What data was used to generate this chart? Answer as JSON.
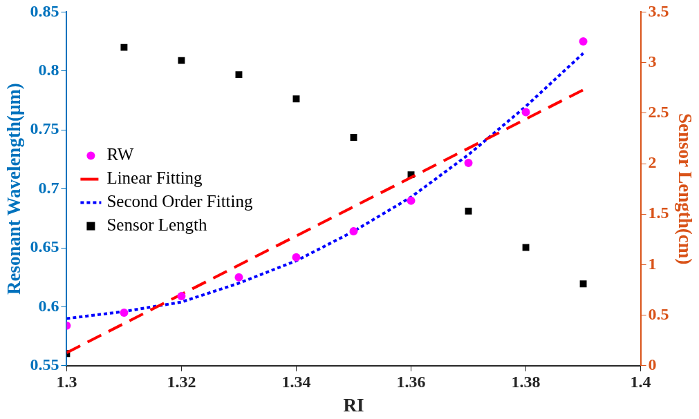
{
  "chart_data": {
    "type": "scatter",
    "xlabel": "RI",
    "ylabel": "Resonant Wavelength(μm)",
    "y2label": "Sensor Length(cm)",
    "x": [
      1.3,
      1.31,
      1.32,
      1.33,
      1.34,
      1.35,
      1.36,
      1.37,
      1.38,
      1.39
    ],
    "xlim": [
      1.3,
      1.4
    ],
    "xticks": [
      1.3,
      1.32,
      1.34,
      1.36,
      1.38,
      1.4
    ],
    "ylim": [
      0.55,
      0.85
    ],
    "yticks": [
      0.55,
      0.6,
      0.65,
      0.7,
      0.75,
      0.8,
      0.85
    ],
    "y2lim": [
      0,
      3.5
    ],
    "y2ticks": [
      0,
      0.5,
      1,
      1.5,
      2,
      2.5,
      3,
      3.5
    ],
    "grid": false,
    "legend": "left",
    "series": [
      {
        "name": "RW",
        "marker": "circle",
        "color": "#ff00ff",
        "values": [
          0.584,
          0.595,
          0.609,
          0.625,
          0.642,
          0.664,
          0.69,
          0.722,
          0.765,
          0.825
        ]
      },
      {
        "name": "Linear Fitting",
        "type": "line",
        "marker": "none",
        "line_style": "dashed",
        "color": "#ff0000",
        "x": [
          1.3,
          1.39
        ],
        "values": [
          0.561,
          0.784
        ]
      },
      {
        "name": "Second Order Fitting",
        "type": "line",
        "marker": "none",
        "line_style": "dotted",
        "color": "#0000ff",
        "x": [
          1.3,
          1.31,
          1.32,
          1.33,
          1.34,
          1.35,
          1.36,
          1.37,
          1.38,
          1.39
        ],
        "values": [
          0.59,
          0.596,
          0.604,
          0.62,
          0.639,
          0.664,
          0.693,
          0.729,
          0.77,
          0.815
        ]
      },
      {
        "name": "Sensor Length",
        "marker": "square",
        "axis": "y2",
        "color": "#000000",
        "values": [
          0.12,
          3.15,
          3.02,
          2.88,
          2.64,
          2.26,
          1.89,
          1.53,
          1.17,
          0.81
        ]
      }
    ]
  }
}
